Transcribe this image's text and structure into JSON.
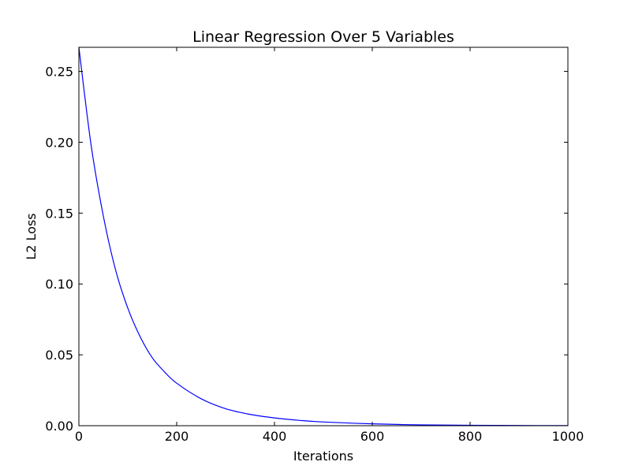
{
  "chart_data": {
    "type": "line",
    "title": "Linear Regression Over 5 Variables",
    "xlabel": "Iterations",
    "ylabel": "L2 Loss",
    "xlim": [
      0,
      1000
    ],
    "ylim": [
      0,
      0.267
    ],
    "grid": false,
    "xticks": [
      0,
      200,
      400,
      600,
      800,
      1000
    ],
    "xtick_labels": [
      "0",
      "200",
      "400",
      "600",
      "800",
      "1000"
    ],
    "yticks": [
      0,
      0.05,
      0.1,
      0.15,
      0.2,
      0.25
    ],
    "ytick_labels": [
      "0.00",
      "0.05",
      "0.10",
      "0.15",
      "0.20",
      "0.25"
    ],
    "series": [
      {
        "color": "#0000ff",
        "x": [
          0,
          25,
          50,
          75,
          100,
          125,
          150,
          175,
          200,
          250,
          300,
          350,
          400,
          450,
          500,
          600,
          700,
          800,
          900,
          1000
        ],
        "y": [
          0.267,
          0.198,
          0.148,
          0.11,
          0.083,
          0.063,
          0.048,
          0.038,
          0.03,
          0.019,
          0.012,
          0.008,
          0.0055,
          0.0038,
          0.0026,
          0.0013,
          0.0006,
          0.0003,
          0.00015,
          8e-05
        ]
      }
    ]
  }
}
